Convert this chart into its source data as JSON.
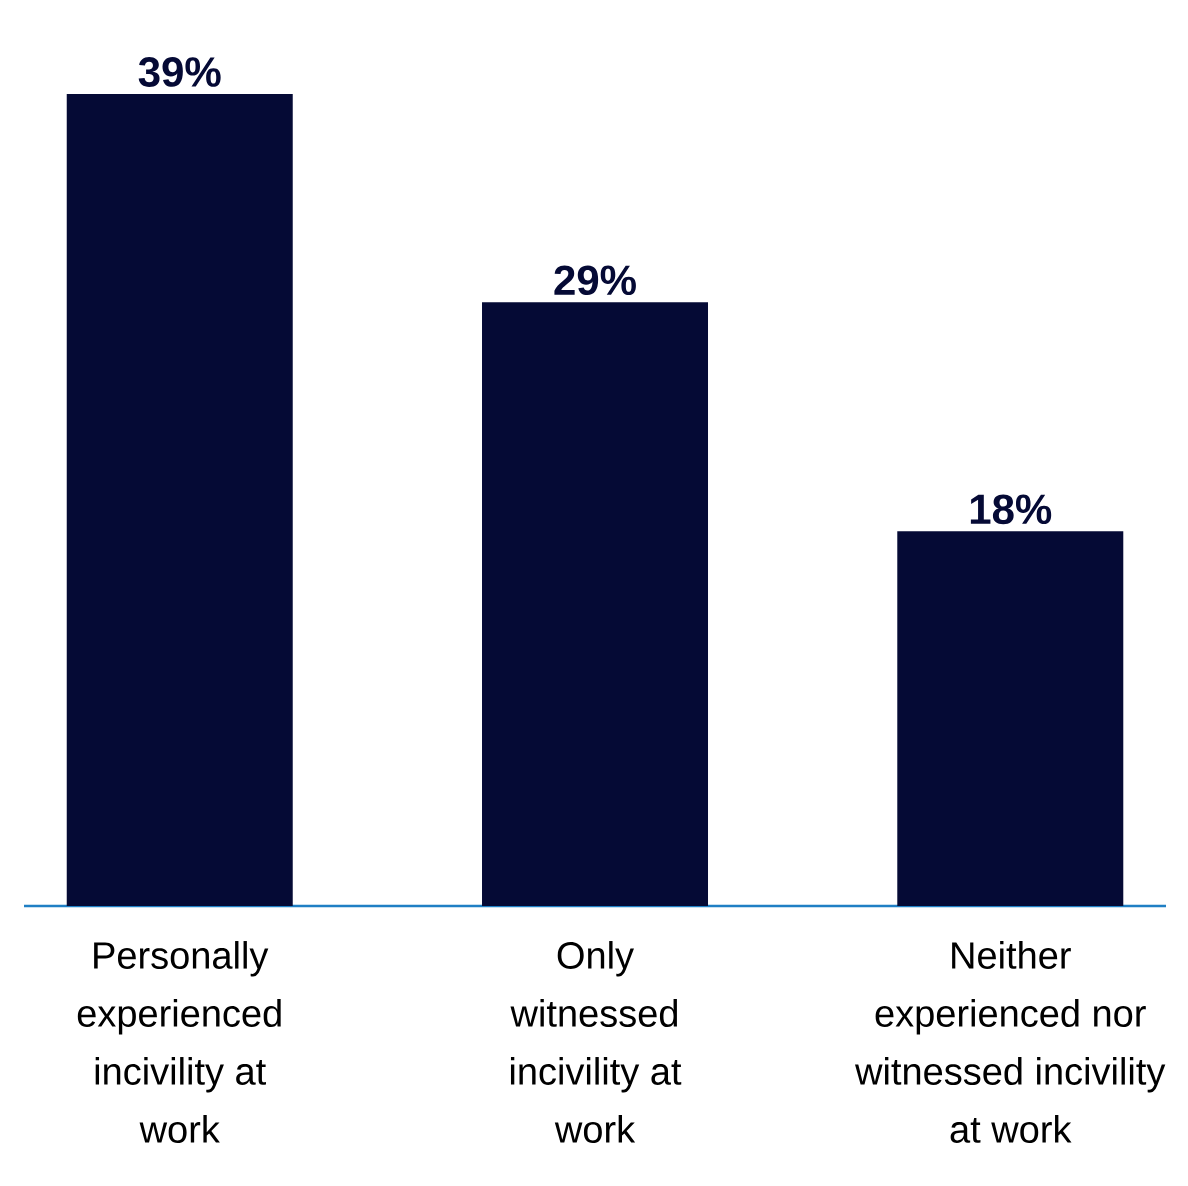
{
  "chart_data": {
    "type": "bar",
    "categories": [
      "Personally experienced incivility at work",
      "Only witnessed incivility at work",
      "Neither experienced nor witnessed incivility at work"
    ],
    "values": [
      39,
      29,
      18
    ],
    "value_labels": [
      "39%",
      "29%",
      "18%"
    ],
    "color": "#050a35"
  }
}
